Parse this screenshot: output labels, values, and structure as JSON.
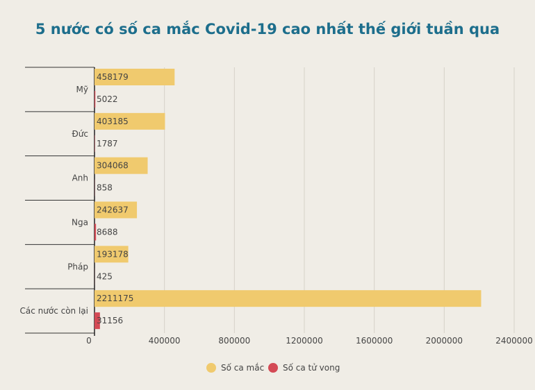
{
  "chart_data": {
    "type": "bar",
    "orientation": "horizontal",
    "title": "5 nước có số ca mắc Covid-19 cao nhất thế giới tuần qua",
    "categories": [
      "Mỹ",
      "Đức",
      "Anh",
      "Nga",
      "Pháp",
      "Các nước còn lại"
    ],
    "series": [
      {
        "name": "Số ca mắc",
        "color": "#f0ca6e",
        "values": [
          458179,
          403185,
          304068,
          242637,
          193178,
          2211175
        ]
      },
      {
        "name": "Số ca tử vong",
        "color": "#d44a55",
        "values": [
          5022,
          1787,
          858,
          8688,
          425,
          31156
        ]
      }
    ],
    "xlim": [
      0,
      2400000
    ],
    "xticks": [
      0,
      400000,
      800000,
      1200000,
      1600000,
      2000000,
      2400000
    ],
    "xtick_labels": [
      "0",
      "400000",
      "800000",
      "1200000",
      "1600000",
      "2000000",
      "2400000"
    ],
    "grid": true,
    "legend_position": "bottom-center"
  }
}
